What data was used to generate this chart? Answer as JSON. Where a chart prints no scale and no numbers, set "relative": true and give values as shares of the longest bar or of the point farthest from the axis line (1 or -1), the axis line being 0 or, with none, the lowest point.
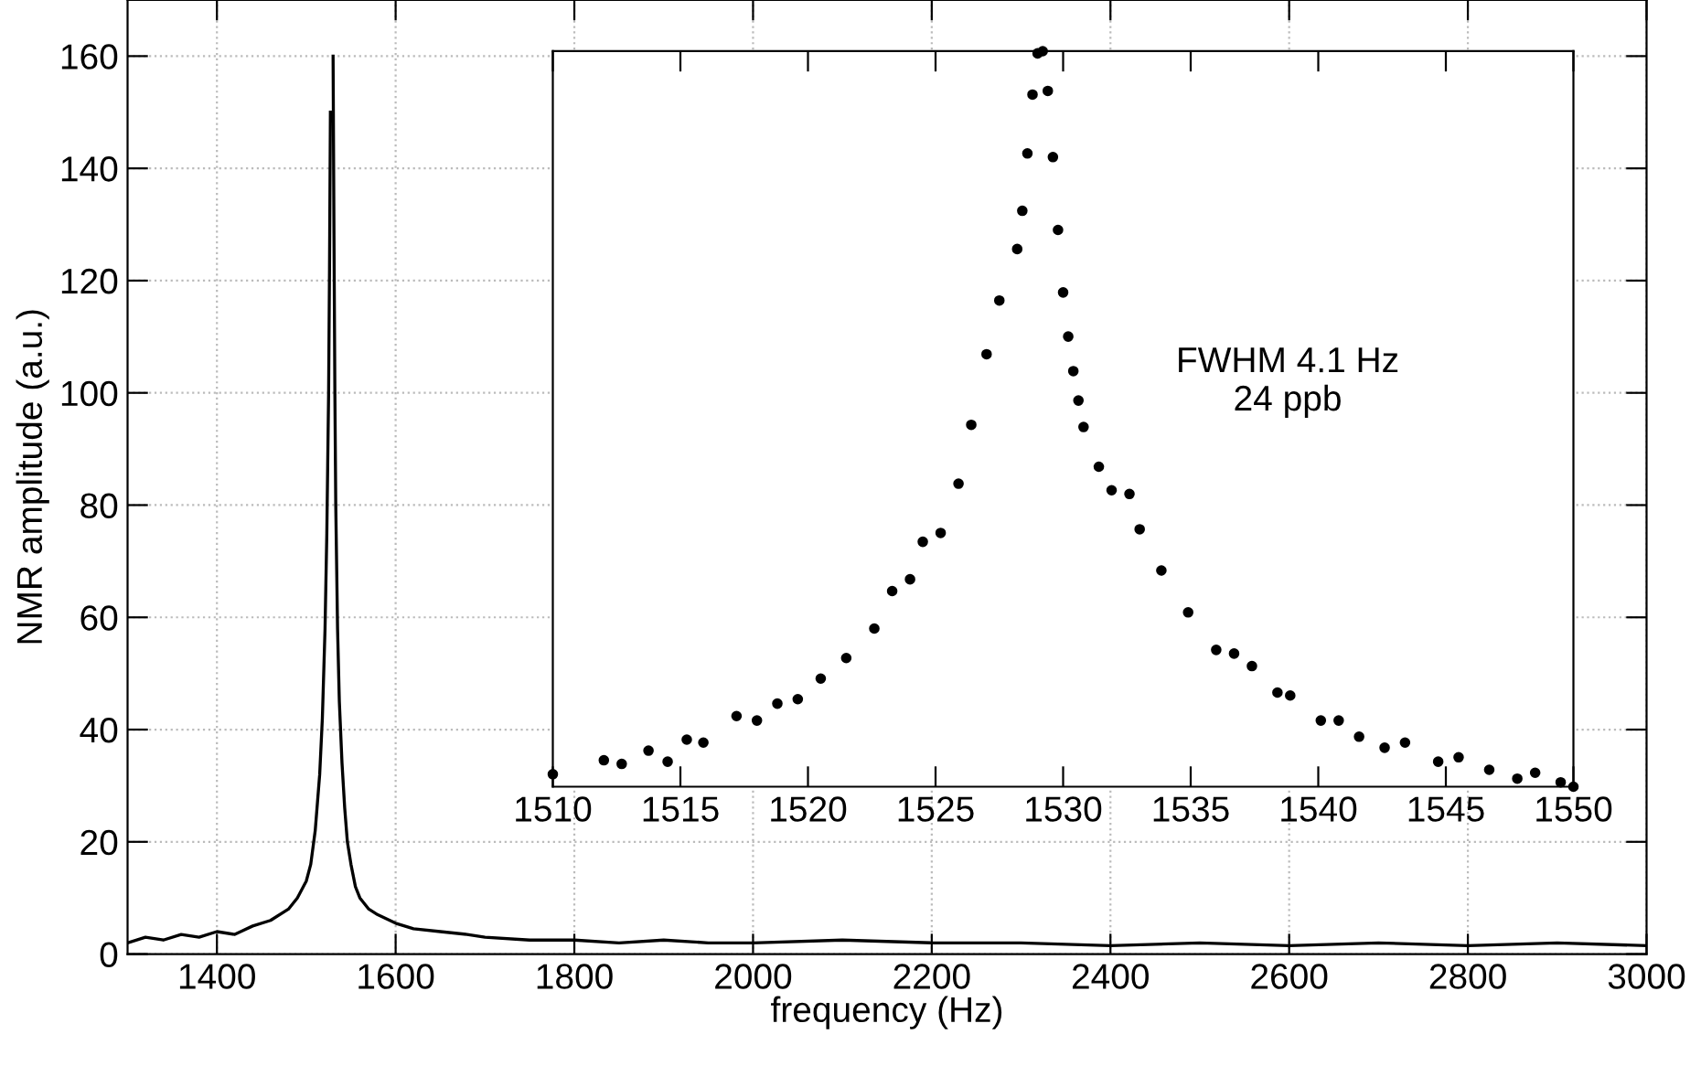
{
  "chart_data": [
    {
      "type": "line",
      "xlabel": "frequency (Hz)",
      "ylabel": "NMR amplitude (a.u.)",
      "xlim": [
        1300,
        3000
      ],
      "ylim": [
        0,
        170
      ],
      "xticks": [
        1400,
        1600,
        1800,
        2000,
        2200,
        2400,
        2600,
        2800,
        3000
      ],
      "yticks": [
        0,
        20,
        40,
        60,
        80,
        100,
        120,
        140,
        160
      ],
      "grid": true,
      "marker": "none",
      "line_style": "solid",
      "series": [
        {
          "color": "#000000",
          "x": [
            1300,
            1320,
            1340,
            1360,
            1380,
            1400,
            1420,
            1440,
            1460,
            1480,
            1490,
            1500,
            1505,
            1510,
            1515,
            1518,
            1521,
            1523,
            1525,
            1526,
            1527,
            1528,
            1529,
            1530,
            1531,
            1532,
            1533,
            1535,
            1537,
            1540,
            1543,
            1546,
            1550,
            1555,
            1560,
            1570,
            1580,
            1600,
            1620,
            1650,
            1680,
            1700,
            1750,
            1800,
            1850,
            1900,
            1950,
            2000,
            2100,
            2200,
            2300,
            2400,
            2500,
            2600,
            2700,
            2800,
            2900,
            3000
          ],
          "values": [
            2,
            3,
            2.5,
            3.5,
            3,
            4,
            3.5,
            5,
            6,
            8,
            10,
            13,
            16,
            22,
            32,
            42,
            58,
            75,
            100,
            122,
            150,
            null,
            null,
            160,
            128,
            100,
            80,
            58,
            45,
            34,
            26,
            20,
            16,
            12,
            10,
            8,
            7,
            5.5,
            4.5,
            4,
            3.5,
            3,
            2.5,
            2.5,
            2,
            2.5,
            2,
            2,
            2.5,
            2,
            2,
            1.5,
            2,
            1.5,
            2,
            1.5,
            2,
            1.5
          ]
        }
      ]
    },
    {
      "type": "scatter",
      "relative": true,
      "tick_labels": "x",
      "xlim": [
        1510,
        1550
      ],
      "xticks": [
        1510,
        1515,
        1520,
        1525,
        1530,
        1535,
        1540,
        1545,
        1550
      ],
      "marker": "circle",
      "annotations": [
        "FWHM 4.1 Hz\n24 ppb"
      ],
      "series": [
        {
          "color": "#000000",
          "x": [
            1510,
            1512.0,
            1512.7,
            1513.75,
            1514.5,
            1515.25,
            1515.9,
            1517.2,
            1518.0,
            1518.8,
            1519.6,
            1520.5,
            1521.5,
            1522.6,
            1523.3,
            1524.0,
            1524.5,
            1525.2,
            1525.9,
            1526.4,
            1527.0,
            1527.5,
            1528.2,
            1528.4,
            1528.6,
            1528.8,
            1529.0,
            1529.2,
            1529.4,
            1529.6,
            1529.8,
            1530.0,
            1530.2,
            1530.4,
            1530.6,
            1530.8,
            1531.4,
            1531.9,
            1532.6,
            1533.0,
            1533.85,
            1534.9,
            1536.0,
            1536.7,
            1537.4,
            1538.4,
            1538.9,
            1540.1,
            1540.8,
            1541.6,
            1542.6,
            1543.4,
            1544.7,
            1545.5,
            1546.7,
            1547.8,
            1548.5,
            1549.5,
            1550
          ],
          "values": [
            0.017,
            0.036,
            0.031,
            0.049,
            0.034,
            0.064,
            0.06,
            0.096,
            0.09,
            0.113,
            0.119,
            0.147,
            0.175,
            0.215,
            0.266,
            0.282,
            0.333,
            0.345,
            0.412,
            0.492,
            0.588,
            0.661,
            0.731,
            0.783,
            0.861,
            0.941,
            0.997,
            1.0,
            0.946,
            0.856,
            0.757,
            0.672,
            0.612,
            0.565,
            0.525,
            0.489,
            0.435,
            0.403,
            0.398,
            0.35,
            0.294,
            0.237,
            0.186,
            0.181,
            0.164,
            0.128,
            0.124,
            0.09,
            0.09,
            0.068,
            0.053,
            0.06,
            0.034,
            0.04,
            0.023,
            0.011,
            0.019,
            0.006,
            0.0
          ]
        }
      ]
    }
  ]
}
